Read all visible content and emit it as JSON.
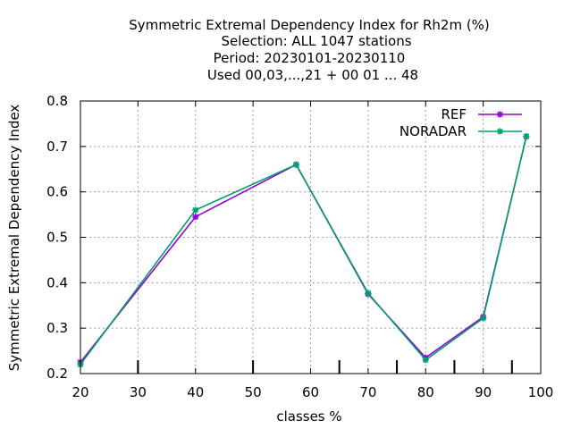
{
  "chart_data": {
    "type": "line",
    "title_lines": [
      "Symmetric Extremal Dependency Index  for Rh2m (%)",
      "Selection: ALL   1047 stations",
      "Period: 20230101-20230110",
      "Used  00,03,...,21  + 00 01 ... 48"
    ],
    "xlabel": "classes %",
    "ylabel": "Symmetric Extremal Dependency Index",
    "xlim": [
      20,
      100
    ],
    "ylim": [
      0.2,
      0.8
    ],
    "xticks": [
      20,
      30,
      40,
      50,
      60,
      70,
      80,
      90,
      100
    ],
    "yticks": [
      0.2,
      0.3,
      0.4,
      0.5,
      0.6,
      0.7,
      0.8
    ],
    "xtick_labels": [
      "20",
      "30",
      "40",
      "50",
      "60",
      "70",
      "80",
      "90",
      "100"
    ],
    "ytick_labels": [
      "0.2",
      "0.3",
      "0.4",
      "0.5",
      "0.6",
      "0.7",
      "0.8"
    ],
    "class_markers_x": [
      30,
      50,
      65,
      75,
      85,
      95
    ],
    "grid": true,
    "legend_position": "top-right",
    "series": [
      {
        "name": "REF",
        "color": "#9400d3",
        "x": [
          20,
          40,
          57.5,
          70,
          80,
          90,
          97.5
        ],
        "y": [
          0.225,
          0.545,
          0.66,
          0.375,
          0.235,
          0.325,
          0.722
        ]
      },
      {
        "name": "NORADAR",
        "color": "#009e73",
        "x": [
          20,
          40,
          57.5,
          70,
          80,
          90,
          97.5
        ],
        "y": [
          0.22,
          0.56,
          0.66,
          0.377,
          0.23,
          0.322,
          0.722
        ]
      }
    ]
  }
}
